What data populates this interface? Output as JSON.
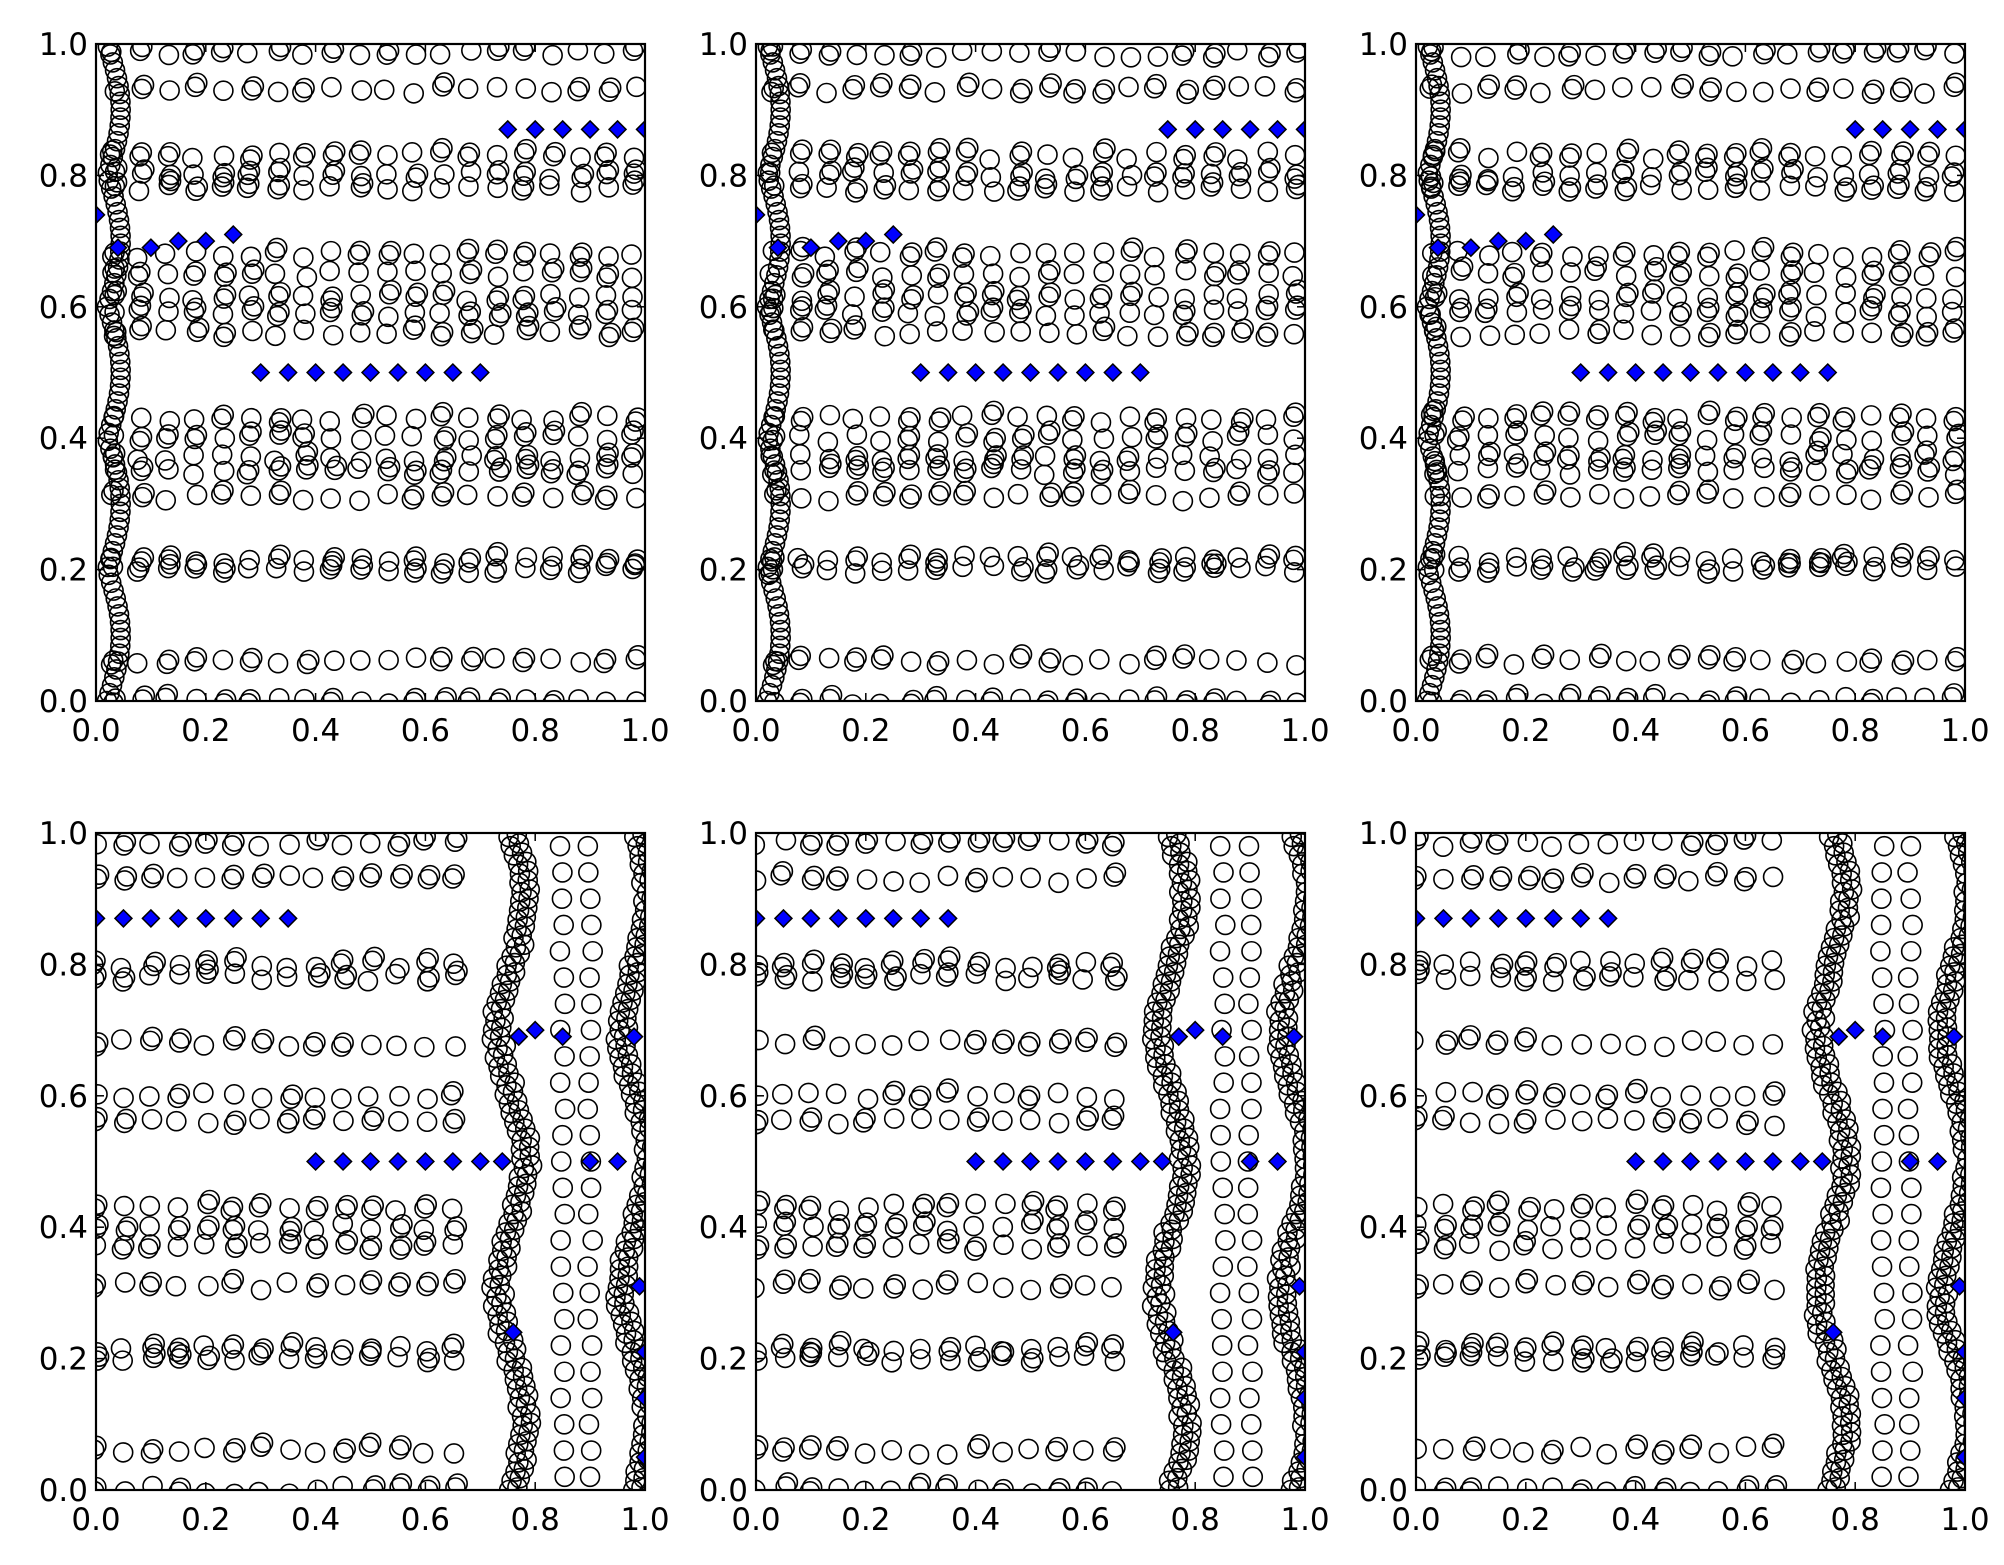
{
  "chart_data": [
    {
      "type": "scatter",
      "row": 0,
      "xlim": [
        0.0,
        1.0
      ],
      "ylim": [
        0.0,
        1.0
      ],
      "xticks": [
        "0.0",
        "0.2",
        "0.4",
        "0.6",
        "0.8",
        "1.0"
      ],
      "yticks": [
        "0.0",
        "0.2",
        "0.4",
        "0.6",
        "0.8",
        "1.0"
      ],
      "grid": false,
      "legend": "none",
      "series": [
        {
          "marker": "open-circle",
          "color": "#000000",
          "points": "dense field of small open circles in horizontal bands near y = 0.0, 0.06, 0.20, 0.31, 0.36, 0.40, 0.43, 0.56, 0.60, 0.65, 0.68, 0.79, 0.83, 0.93, 1.0, plus a wavy column near x = 0.0–0.05"
        },
        {
          "marker": "diamond",
          "color": "#0000ff",
          "points": [
            [
              0.0,
              0.74
            ],
            [
              0.04,
              0.69
            ],
            [
              0.1,
              0.69
            ],
            [
              0.15,
              0.7
            ],
            [
              0.2,
              0.7
            ],
            [
              0.25,
              0.71
            ],
            [
              0.3,
              0.5
            ],
            [
              0.35,
              0.5
            ],
            [
              0.4,
              0.5
            ],
            [
              0.45,
              0.5
            ],
            [
              0.5,
              0.5
            ],
            [
              0.55,
              0.5
            ],
            [
              0.6,
              0.5
            ],
            [
              0.65,
              0.5
            ],
            [
              0.7,
              0.5
            ],
            [
              0.75,
              0.87
            ],
            [
              0.8,
              0.87
            ],
            [
              0.85,
              0.87
            ],
            [
              0.9,
              0.87
            ],
            [
              0.95,
              0.87
            ],
            [
              1.0,
              0.87
            ]
          ]
        }
      ]
    },
    {
      "type": "scatter",
      "row": 0,
      "xlim": [
        0.0,
        1.0
      ],
      "ylim": [
        0.0,
        1.0
      ],
      "xticks": [
        "0.0",
        "0.2",
        "0.4",
        "0.6",
        "0.8",
        "1.0"
      ],
      "yticks": [
        "0.0",
        "0.2",
        "0.4",
        "0.6",
        "0.8",
        "1.0"
      ],
      "grid": false,
      "legend": "none",
      "series": [
        {
          "marker": "open-circle",
          "color": "#000000",
          "points": "dense field of small open circles in horizontal bands, same pattern as the first panel"
        },
        {
          "marker": "diamond",
          "color": "#0000ff",
          "points": [
            [
              0.0,
              0.74
            ],
            [
              0.04,
              0.69
            ],
            [
              0.1,
              0.69
            ],
            [
              0.15,
              0.7
            ],
            [
              0.2,
              0.7
            ],
            [
              0.25,
              0.71
            ],
            [
              0.3,
              0.5
            ],
            [
              0.35,
              0.5
            ],
            [
              0.4,
              0.5
            ],
            [
              0.45,
              0.5
            ],
            [
              0.5,
              0.5
            ],
            [
              0.55,
              0.5
            ],
            [
              0.6,
              0.5
            ],
            [
              0.65,
              0.5
            ],
            [
              0.7,
              0.5
            ],
            [
              0.75,
              0.87
            ],
            [
              0.8,
              0.87
            ],
            [
              0.85,
              0.87
            ],
            [
              0.9,
              0.87
            ],
            [
              0.95,
              0.87
            ],
            [
              1.0,
              0.87
            ]
          ]
        }
      ]
    },
    {
      "type": "scatter",
      "row": 0,
      "xlim": [
        0.0,
        1.0
      ],
      "ylim": [
        0.0,
        1.0
      ],
      "xticks": [
        "0.0",
        "0.2",
        "0.4",
        "0.6",
        "0.8",
        "1.0"
      ],
      "yticks": [
        "0.0",
        "0.2",
        "0.4",
        "0.6",
        "0.8",
        "1.0"
      ],
      "grid": false,
      "legend": "none",
      "series": [
        {
          "marker": "open-circle",
          "color": "#000000",
          "points": "dense field of small open circles in horizontal bands, same pattern as the first panel"
        },
        {
          "marker": "diamond",
          "color": "#0000ff",
          "points": [
            [
              0.0,
              0.74
            ],
            [
              0.04,
              0.69
            ],
            [
              0.1,
              0.69
            ],
            [
              0.15,
              0.7
            ],
            [
              0.2,
              0.7
            ],
            [
              0.25,
              0.71
            ],
            [
              0.3,
              0.5
            ],
            [
              0.35,
              0.5
            ],
            [
              0.4,
              0.5
            ],
            [
              0.45,
              0.5
            ],
            [
              0.5,
              0.5
            ],
            [
              0.55,
              0.5
            ],
            [
              0.6,
              0.5
            ],
            [
              0.65,
              0.5
            ],
            [
              0.7,
              0.5
            ],
            [
              0.75,
              0.5
            ],
            [
              0.8,
              0.87
            ],
            [
              0.85,
              0.87
            ],
            [
              0.9,
              0.87
            ],
            [
              0.95,
              0.87
            ],
            [
              1.0,
              0.87
            ]
          ]
        }
      ]
    },
    {
      "type": "scatter",
      "row": 1,
      "xlim": [
        0.0,
        1.0
      ],
      "ylim": [
        0.0,
        1.0
      ],
      "xticks": [
        "0.0",
        "0.2",
        "0.4",
        "0.6",
        "0.8",
        "1.0"
      ],
      "yticks": [
        "0.0",
        "0.2",
        "0.4",
        "0.6",
        "0.8",
        "1.0"
      ],
      "grid": false,
      "legend": "none",
      "series": [
        {
          "marker": "open-circle",
          "color": "#000000",
          "points": "dense field of small open circles in horizontal bands near y = 0.0, 0.06, 0.20, 0.31, 0.40, 0.43, 0.56, 0.60, 0.68, 0.79, 0.93, 1.0, with clustered columns near x = 0.72–0.78 and x = 0.95–1.0"
        },
        {
          "marker": "diamond",
          "color": "#0000ff",
          "points": [
            [
              0.0,
              0.87
            ],
            [
              0.05,
              0.87
            ],
            [
              0.1,
              0.87
            ],
            [
              0.15,
              0.87
            ],
            [
              0.2,
              0.87
            ],
            [
              0.25,
              0.87
            ],
            [
              0.3,
              0.87
            ],
            [
              0.35,
              0.87
            ],
            [
              0.4,
              0.5
            ],
            [
              0.45,
              0.5
            ],
            [
              0.5,
              0.5
            ],
            [
              0.55,
              0.5
            ],
            [
              0.6,
              0.5
            ],
            [
              0.65,
              0.5
            ],
            [
              0.7,
              0.5
            ],
            [
              0.74,
              0.5
            ],
            [
              0.76,
              0.24
            ],
            [
              0.77,
              0.69
            ],
            [
              0.8,
              0.7
            ],
            [
              0.85,
              0.69
            ],
            [
              0.9,
              0.5
            ],
            [
              0.95,
              0.5
            ],
            [
              0.98,
              0.69
            ],
            [
              0.99,
              0.31
            ],
            [
              1.0,
              0.21
            ],
            [
              1.0,
              0.14
            ],
            [
              1.0,
              0.05
            ]
          ]
        }
      ]
    },
    {
      "type": "scatter",
      "row": 1,
      "xlim": [
        0.0,
        1.0
      ],
      "ylim": [
        0.0,
        1.0
      ],
      "xticks": [
        "0.0",
        "0.2",
        "0.4",
        "0.6",
        "0.8",
        "1.0"
      ],
      "yticks": [
        "0.0",
        "0.2",
        "0.4",
        "0.6",
        "0.8",
        "1.0"
      ],
      "grid": false,
      "legend": "none",
      "series": [
        {
          "marker": "open-circle",
          "color": "#000000",
          "points": "dense field of small open circles, same pattern as the fourth panel"
        },
        {
          "marker": "diamond",
          "color": "#0000ff",
          "points": [
            [
              0.0,
              0.87
            ],
            [
              0.05,
              0.87
            ],
            [
              0.1,
              0.87
            ],
            [
              0.15,
              0.87
            ],
            [
              0.2,
              0.87
            ],
            [
              0.25,
              0.87
            ],
            [
              0.3,
              0.87
            ],
            [
              0.35,
              0.87
            ],
            [
              0.4,
              0.5
            ],
            [
              0.45,
              0.5
            ],
            [
              0.5,
              0.5
            ],
            [
              0.55,
              0.5
            ],
            [
              0.6,
              0.5
            ],
            [
              0.65,
              0.5
            ],
            [
              0.7,
              0.5
            ],
            [
              0.74,
              0.5
            ],
            [
              0.76,
              0.24
            ],
            [
              0.77,
              0.69
            ],
            [
              0.8,
              0.7
            ],
            [
              0.85,
              0.69
            ],
            [
              0.9,
              0.5
            ],
            [
              0.95,
              0.5
            ],
            [
              0.98,
              0.69
            ],
            [
              0.99,
              0.31
            ],
            [
              1.0,
              0.21
            ],
            [
              1.0,
              0.14
            ],
            [
              1.0,
              0.05
            ]
          ]
        }
      ]
    },
    {
      "type": "scatter",
      "row": 1,
      "xlim": [
        0.0,
        1.0
      ],
      "ylim": [
        0.0,
        1.0
      ],
      "xticks": [
        "0.0",
        "0.2",
        "0.4",
        "0.6",
        "0.8",
        "1.0"
      ],
      "yticks": [
        "0.0",
        "0.2",
        "0.4",
        "0.6",
        "0.8",
        "1.0"
      ],
      "grid": false,
      "legend": "none",
      "series": [
        {
          "marker": "open-circle",
          "color": "#000000",
          "points": "dense field of small open circles, same pattern as the fourth panel"
        },
        {
          "marker": "diamond",
          "color": "#0000ff",
          "points": [
            [
              0.0,
              0.87
            ],
            [
              0.05,
              0.87
            ],
            [
              0.1,
              0.87
            ],
            [
              0.15,
              0.87
            ],
            [
              0.2,
              0.87
            ],
            [
              0.25,
              0.87
            ],
            [
              0.3,
              0.87
            ],
            [
              0.35,
              0.87
            ],
            [
              0.4,
              0.5
            ],
            [
              0.45,
              0.5
            ],
            [
              0.5,
              0.5
            ],
            [
              0.55,
              0.5
            ],
            [
              0.6,
              0.5
            ],
            [
              0.65,
              0.5
            ],
            [
              0.7,
              0.5
            ],
            [
              0.74,
              0.5
            ],
            [
              0.76,
              0.24
            ],
            [
              0.77,
              0.69
            ],
            [
              0.8,
              0.7
            ],
            [
              0.85,
              0.69
            ],
            [
              0.9,
              0.5
            ],
            [
              0.95,
              0.5
            ],
            [
              0.98,
              0.69
            ],
            [
              0.99,
              0.31
            ],
            [
              1.0,
              0.21
            ],
            [
              1.0,
              0.14
            ],
            [
              1.0,
              0.05
            ]
          ]
        }
      ]
    }
  ]
}
